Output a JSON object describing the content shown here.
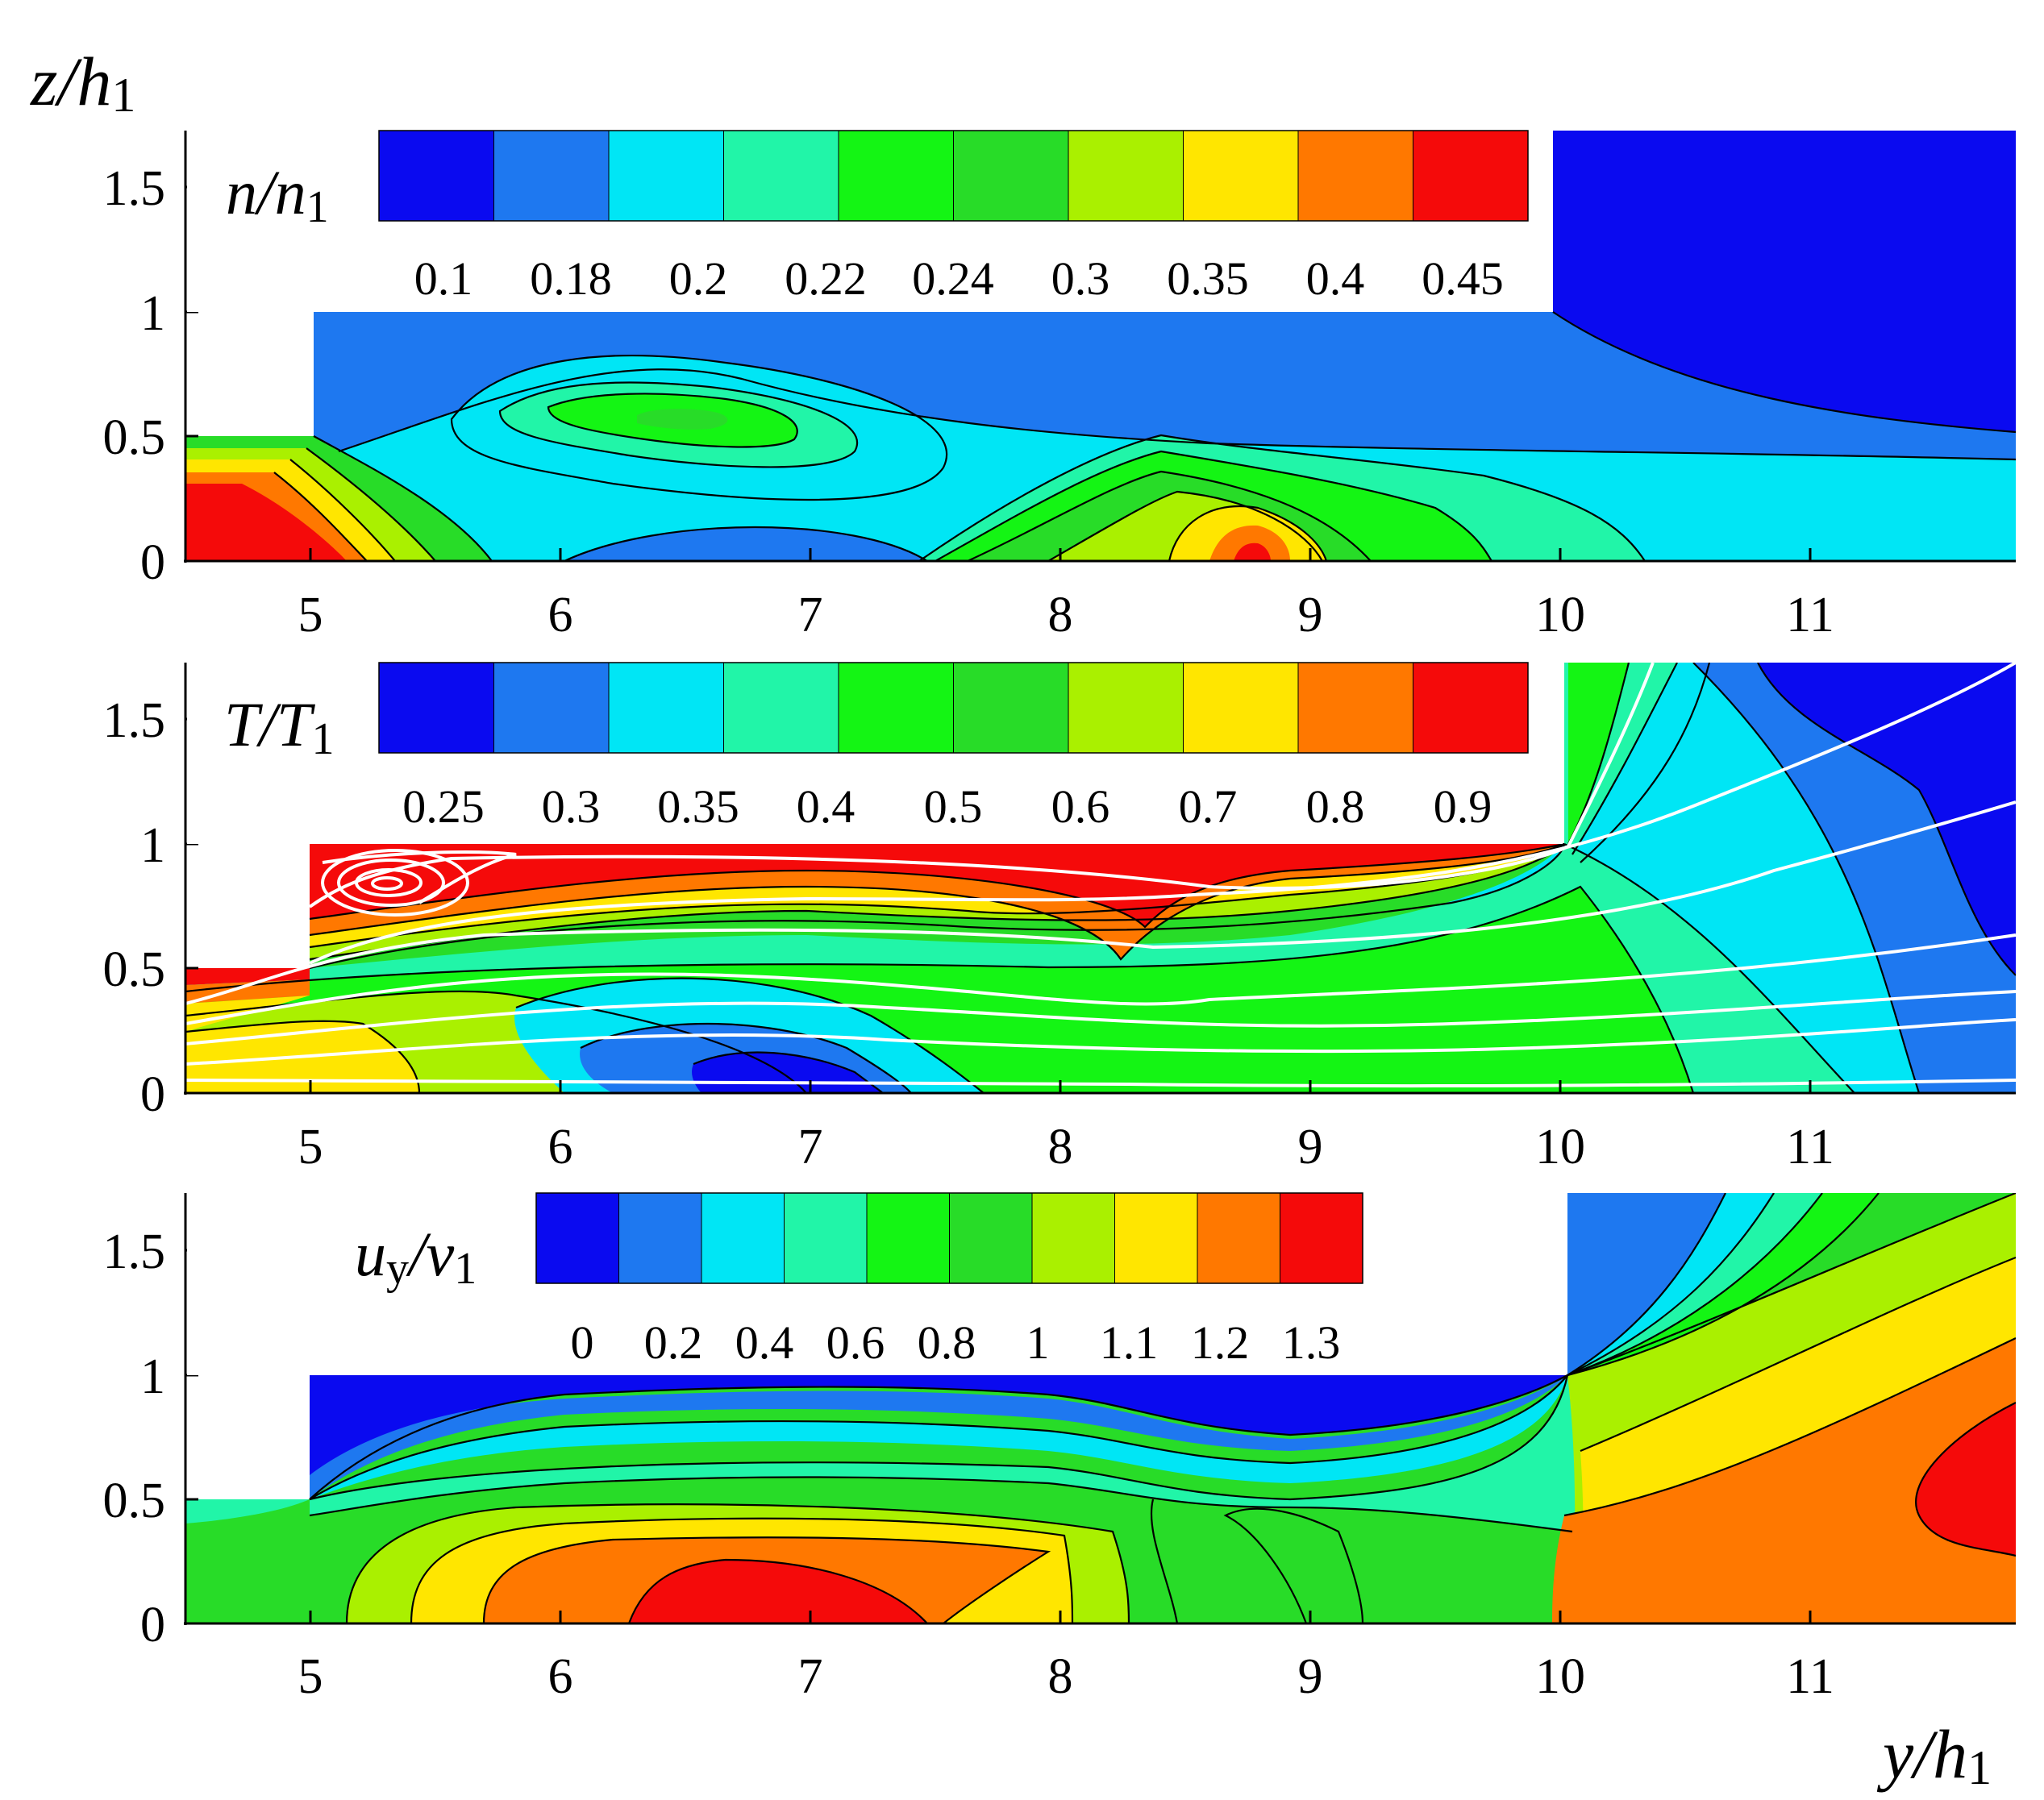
{
  "chart_data": [
    {
      "type": "contour",
      "panel": "top",
      "xlim": [
        4.5,
        11.85
      ],
      "ylim": [
        0,
        1.72
      ],
      "xticks": [
        "5",
        "6",
        "7",
        "8",
        "9",
        "10",
        "11"
      ],
      "yticks": [
        "0",
        "0.5",
        "1",
        "1.5"
      ],
      "ylabel": {
        "main": "z/h",
        "sub": "1"
      },
      "colorbar": {
        "label": {
          "main": "n/n",
          "sub": "1"
        },
        "levels": [
          "0.1",
          "0.18",
          "0.2",
          "0.22",
          "0.24",
          "0.3",
          "0.35",
          "0.4",
          "0.45"
        ],
        "colors": [
          "#0a0af0",
          "#1e78f0",
          "#00e6f5",
          "#21f5a8",
          "#14f514",
          "#28dc28",
          "#aaf000",
          "#ffe600",
          "#ff7800",
          "#f50a0a"
        ]
      },
      "features": [
        {
          "region": "inlet jet core",
          "level": "0.45",
          "y": 4.75,
          "z": 0.15
        },
        {
          "region": "upper recirculation",
          "level": "0.24",
          "y": 6.55,
          "z": 0.55
        },
        {
          "region": "lower hot spot",
          "level": "0.45",
          "y": 8.75,
          "z": 0.03
        },
        {
          "region": "outer flow",
          "level": "0.1",
          "y": 11.2,
          "z": 1.2
        }
      ]
    },
    {
      "type": "contour",
      "panel": "middle",
      "xlim": [
        4.5,
        11.85
      ],
      "ylim": [
        0,
        1.72
      ],
      "xticks": [
        "5",
        "6",
        "7",
        "8",
        "9",
        "10",
        "11"
      ],
      "yticks": [
        "0",
        "0.5",
        "1",
        "1.5"
      ],
      "colorbar": {
        "label": {
          "main": "T/T",
          "sub": "1"
        },
        "levels": [
          "0.25",
          "0.3",
          "0.35",
          "0.4",
          "0.5",
          "0.6",
          "0.7",
          "0.8",
          "0.9"
        ],
        "colors": [
          "#0a0af0",
          "#1e78f0",
          "#00e6f5",
          "#21f5a8",
          "#14f514",
          "#28dc28",
          "#aaf000",
          "#ffe600",
          "#ff7800",
          "#f50a0a"
        ]
      },
      "streamlines": true,
      "features": [
        {
          "region": "upper wall hot layer",
          "level": "0.9",
          "y": 7.5,
          "z": 0.92
        },
        {
          "region": "vortex near corner",
          "y": 5.3,
          "z": 0.8
        },
        {
          "region": "cold core",
          "level": "0.25",
          "y": 6.8,
          "z": 0.1
        },
        {
          "region": "outer flow",
          "level": "0.25",
          "y": 11.7,
          "z": 1.4
        }
      ]
    },
    {
      "type": "contour",
      "panel": "bottom",
      "xlim": [
        4.5,
        11.85
      ],
      "ylim": [
        0,
        1.72
      ],
      "xticks": [
        "5",
        "6",
        "7",
        "8",
        "9",
        "10",
        "11"
      ],
      "yticks": [
        "0",
        "0.5",
        "1",
        "1.5"
      ],
      "xlabel": {
        "main": "y/h",
        "sub": "1"
      },
      "colorbar": {
        "label": {
          "main": "u",
          "sub": "y",
          "main2": "/v",
          "sub2": "1"
        },
        "levels": [
          "0",
          "0.2",
          "0.4",
          "0.6",
          "0.8",
          "1",
          "1.1",
          "1.2",
          "1.3"
        ],
        "colors": [
          "#0a0af0",
          "#1e78f0",
          "#00e6f5",
          "#21f5a8",
          "#14f514",
          "#28dc28",
          "#aaf000",
          "#ffe600",
          "#ff7800",
          "#f50a0a"
        ]
      },
      "features": [
        {
          "region": "jet core",
          "level": "1.3",
          "y": 6.9,
          "z": 0.1
        },
        {
          "region": "outlet jet",
          "level": "1.3",
          "y": 11.6,
          "z": 0.6
        },
        {
          "region": "upper wall layer",
          "level": "0",
          "y": 5.5,
          "z": 0.9
        }
      ]
    }
  ]
}
